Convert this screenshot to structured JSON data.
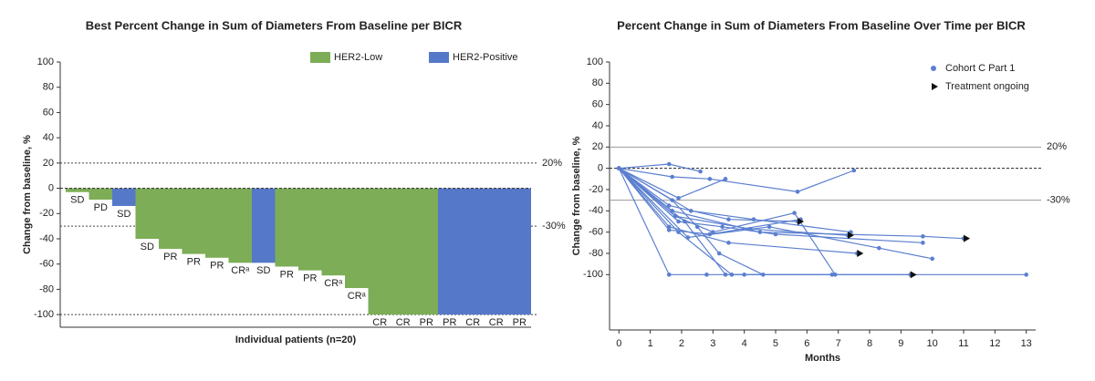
{
  "chart_data": [
    {
      "type": "bar",
      "title": "Best Percent Change in Sum of Diameters From Baseline per BICR",
      "x_label": "Individual patients (n=20)",
      "y_label": "Change from baseline, %",
      "legend": "top-right",
      "series": [
        {
          "name": "HER2-Low",
          "color": "#7dad57",
          "values": [
            -3,
            -9,
            null,
            -40,
            -48,
            -52,
            -55,
            -59,
            null,
            -62,
            -65,
            -69,
            -79,
            -100,
            -100,
            -100,
            null,
            null,
            null,
            null
          ]
        },
        {
          "name": "HER2-Positive",
          "color": "#5578c8",
          "values": [
            null,
            null,
            -14,
            null,
            null,
            null,
            null,
            null,
            -59,
            null,
            null,
            null,
            null,
            null,
            null,
            null,
            -100,
            -100,
            -100,
            -100
          ]
        }
      ],
      "bar_labels": [
        "SD",
        "PD",
        "SD",
        "SD",
        "PR",
        "PR",
        "PR",
        "CRᵃ",
        "SD",
        "PR",
        "PR",
        "CRᵃ",
        "CRᵃ",
        "CR",
        "CR",
        "PR",
        "PR",
        "CR",
        "CR",
        "PR"
      ],
      "reference_lines": [
        {
          "value": 20,
          "label": "20%"
        },
        {
          "value": -30,
          "label": "-30%"
        },
        {
          "value": -100
        }
      ],
      "ylim": [
        -110,
        100
      ],
      "yticks": [
        -100,
        -80,
        -60,
        -40,
        -20,
        0,
        20,
        40,
        60,
        80,
        100
      ]
    },
    {
      "type": "line",
      "title": "Percent Change in Sum of Diameters From Baseline Over Time per BICR",
      "x_label": "Months",
      "y_label": "Change from baseline, %",
      "legend": "top-right",
      "series": [
        {
          "name": "Cohort C Part 1",
          "color": "#5b7fd0",
          "lines": [
            {
              "x": [
                0,
                1.6,
                2.6
              ],
              "values": [
                0,
                4,
                -3
              ]
            },
            {
              "x": [
                0,
                1.7,
                2.9,
                5.7,
                7.5
              ],
              "values": [
                0,
                -8,
                -10,
                -22,
                -2
              ]
            },
            {
              "x": [
                0,
                1.9,
                3.4
              ],
              "values": [
                0,
                -28,
                -10
              ]
            },
            {
              "x": [
                0,
                1.6,
                3.5,
                5.7
              ],
              "values": [
                0,
                -35,
                -48,
                -50
              ]
            },
            {
              "x": [
                0,
                1.8,
                4.2,
                7.3
              ],
              "values": [
                0,
                -45,
                -57,
                -63
              ]
            },
            {
              "x": [
                0,
                1.6,
                3.5,
                7.6
              ],
              "values": [
                0,
                -55,
                -70,
                -80
              ]
            },
            {
              "x": [
                0,
                1.7,
                4.5,
                9.7,
                11
              ],
              "values": [
                0,
                -40,
                -60,
                -64,
                -66
              ]
            },
            {
              "x": [
                0,
                1.6,
                2.8,
                9.3
              ],
              "values": [
                0,
                -100,
                -100,
                -100
              ]
            },
            {
              "x": [
                0,
                1.9,
                3.6,
                13
              ],
              "values": [
                0,
                -60,
                -100,
                -100
              ]
            },
            {
              "x": [
                0,
                2.1,
                3.4,
                4.0,
                6.8
              ],
              "values": [
                0,
                -50,
                -100,
                -100,
                -100
              ]
            },
            {
              "x": [
                0,
                1.8,
                3.0,
                5.6,
                6.9
              ],
              "values": [
                0,
                -45,
                -60,
                -42,
                -100
              ]
            },
            {
              "x": [
                0,
                2.2,
                4.8,
                8.3,
                10
              ],
              "values": [
                0,
                -65,
                -55,
                -75,
                -85
              ]
            },
            {
              "x": [
                0,
                1.7,
                2.5,
                3.2,
                4.6
              ],
              "values": [
                0,
                -30,
                -55,
                -80,
                -100
              ]
            },
            {
              "x": [
                0,
                1.9,
                3.3,
                5.0,
                9.7
              ],
              "values": [
                0,
                -50,
                -55,
                -62,
                -70
              ]
            },
            {
              "x": [
                0,
                1.6,
                2.9,
                5.8
              ],
              "values": [
                0,
                -58,
                -62,
                -48
              ]
            },
            {
              "x": [
                0,
                2.3,
                4.3,
                7.4
              ],
              "values": [
                0,
                -40,
                -48,
                -60
              ]
            }
          ]
        }
      ],
      "ongoing": {
        "name": "Treatment ongoing",
        "color": "#111111",
        "x": [
          5.7,
          7.3,
          7.6,
          11,
          9.3
        ],
        "values": [
          -50,
          -63,
          -80,
          -66,
          -100
        ]
      },
      "reference_lines": [
        {
          "value": 20,
          "label": "20%"
        },
        {
          "value": -30,
          "label": "-30%"
        }
      ],
      "xlim": [
        -0.3,
        13.3
      ],
      "xticks": [
        0,
        1,
        2,
        3,
        4,
        5,
        6,
        7,
        8,
        9,
        10,
        11,
        12,
        13
      ],
      "ylim": [
        -152,
        100
      ],
      "yticks": [
        -100,
        -80,
        -60,
        -40,
        -20,
        0,
        20,
        40,
        60,
        80,
        100
      ]
    }
  ]
}
